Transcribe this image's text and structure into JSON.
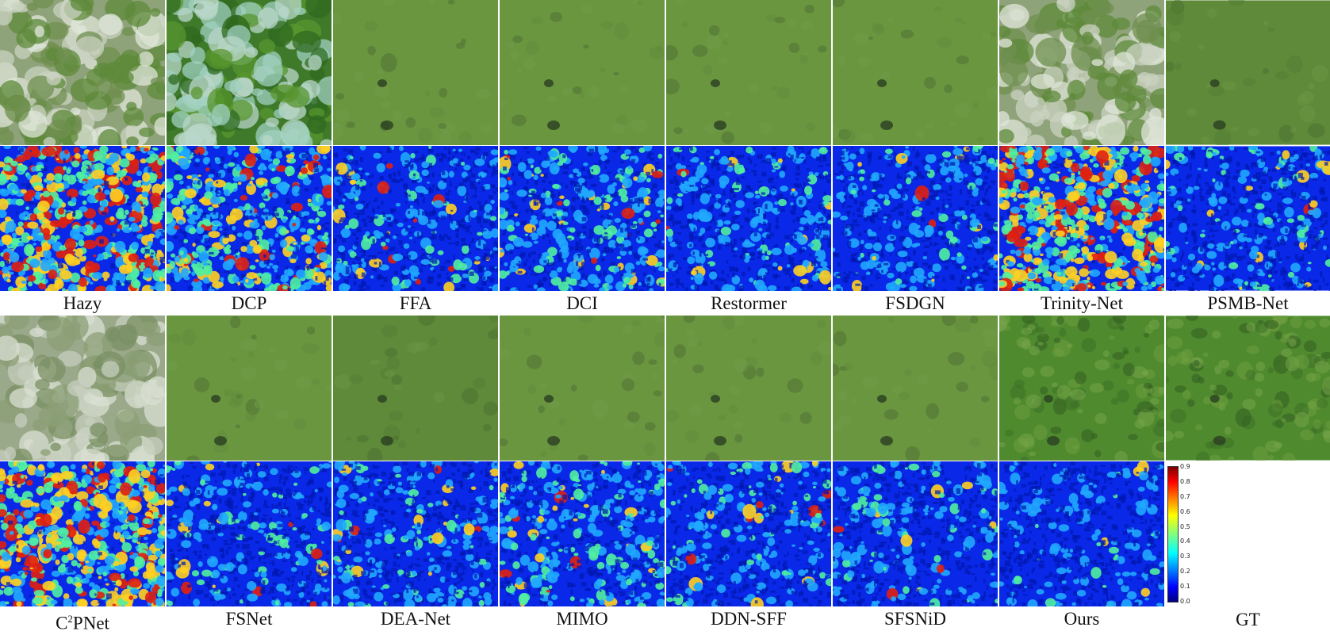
{
  "figure": {
    "row1_labels": [
      "Hazy",
      "DCP",
      "FFA",
      "DCI",
      "Restormer",
      "FSDGN",
      "Trinity-Net",
      "PSMB-Net"
    ],
    "row2_labels": [
      "PNet",
      "FSNet",
      "DEA-Net",
      "MIMO",
      "DDN-SFF",
      "SFSNiD",
      "Ours",
      "GT"
    ],
    "row2_first_prefix": "C",
    "row2_first_sup": "2",
    "colorbar": {
      "ticks": [
        "0.9",
        "0.8",
        "0.7",
        "0.6",
        "0.5",
        "0.4",
        "0.3",
        "0.2",
        "0.1",
        "0.0"
      ],
      "colormap": "jet"
    }
  }
}
